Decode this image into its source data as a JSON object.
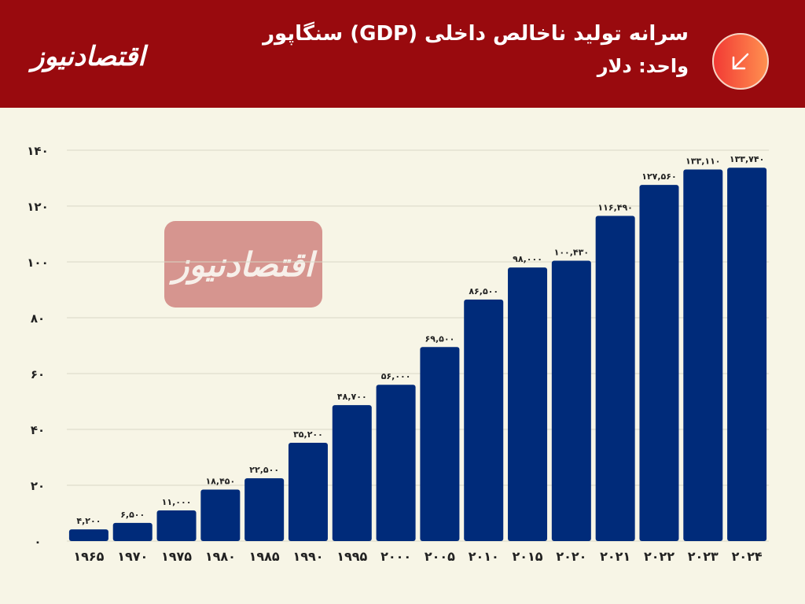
{
  "header": {
    "logo_text": "اقتصادنیوز",
    "title": "سرانه تولید ناخالص داخلی (GDP) سنگاپور",
    "subtitle": "واحد: دلار",
    "badge_icon": "arrow-down-left-icon"
  },
  "watermark": {
    "text": "اقتصادنیوز"
  },
  "colors": {
    "header": "#990a0e",
    "bar": "#002b7a",
    "background": "#f7f5e6"
  },
  "chart_data": {
    "type": "bar",
    "title": "سرانه تولید ناخالص داخلی (GDP) سنگاپور",
    "ylabel": "واحد: دلار",
    "ylim": [
      0,
      140000
    ],
    "yticks": [
      0,
      20000,
      40000,
      60000,
      80000,
      100000,
      120000,
      140000
    ],
    "ytick_labels": [
      "۰",
      "۲۰",
      "۴۰",
      "۶۰",
      "۸۰",
      "۱۰۰",
      "۱۲۰",
      "۱۴۰"
    ],
    "grid": true,
    "categories": [
      "۱۹۶۵",
      "۱۹۷۰",
      "۱۹۷۵",
      "۱۹۸۰",
      "۱۹۸۵",
      "۱۹۹۰",
      "۱۹۹۵",
      "۲۰۰۰",
      "۲۰۰۵",
      "۲۰۱۰",
      "۲۰۱۵",
      "۲۰۲۰",
      "۲۰۲۱",
      "۲۰۲۲",
      "۲۰۲۳",
      "۲۰۲۴"
    ],
    "values": [
      4200,
      6500,
      11000,
      18450,
      22500,
      35200,
      48700,
      56000,
      69500,
      86500,
      98000,
      100430,
      116490,
      127560,
      133110,
      133740
    ],
    "value_labels": [
      "۴,۲۰۰",
      "۶,۵۰۰",
      "۱۱,۰۰۰",
      "۱۸,۴۵۰",
      "۲۲,۵۰۰",
      "۳۵,۲۰۰",
      "۴۸,۷۰۰",
      "۵۶,۰۰۰",
      "۶۹,۵۰۰",
      "۸۶,۵۰۰",
      "۹۸,۰۰۰",
      "۱۰۰,۴۳۰",
      "۱۱۶,۴۹۰",
      "۱۲۷,۵۶۰",
      "۱۳۳,۱۱۰",
      "۱۳۳,۷۴۰"
    ]
  }
}
